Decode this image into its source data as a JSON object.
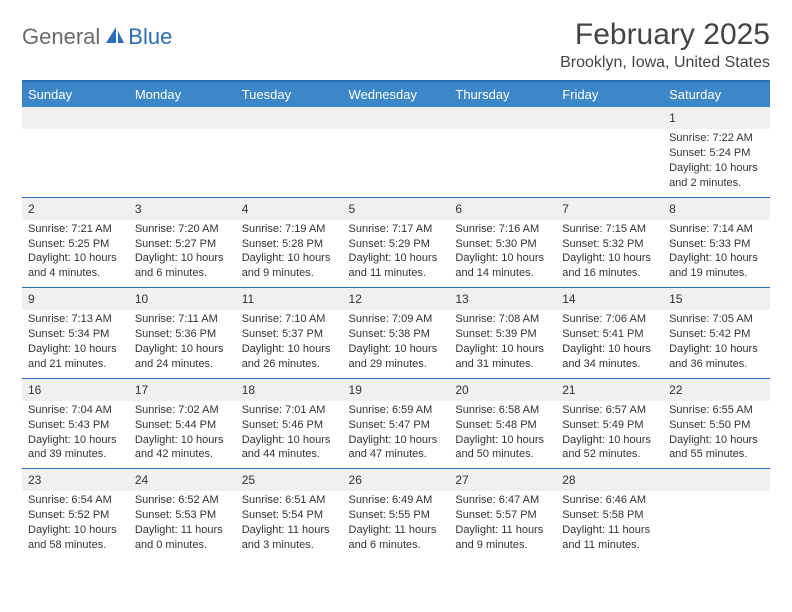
{
  "brand": {
    "part1": "General",
    "part2": "Blue"
  },
  "title": "February 2025",
  "location": "Brooklyn, Iowa, United States",
  "colors": {
    "header_bg": "#3b87c8",
    "border": "#2a6db8",
    "daynum_bg": "#f0f0f0",
    "text": "#333333",
    "logo_gray": "#6b6b6b",
    "logo_blue": "#2a6db8",
    "bg": "#ffffff"
  },
  "weekdays": [
    "Sunday",
    "Monday",
    "Tuesday",
    "Wednesday",
    "Thursday",
    "Friday",
    "Saturday"
  ],
  "weeks": [
    [
      null,
      null,
      null,
      null,
      null,
      null,
      {
        "n": "1",
        "sr": "7:22 AM",
        "ss": "5:24 PM",
        "dl": "10 hours and 2 minutes."
      }
    ],
    [
      {
        "n": "2",
        "sr": "7:21 AM",
        "ss": "5:25 PM",
        "dl": "10 hours and 4 minutes."
      },
      {
        "n": "3",
        "sr": "7:20 AM",
        "ss": "5:27 PM",
        "dl": "10 hours and 6 minutes."
      },
      {
        "n": "4",
        "sr": "7:19 AM",
        "ss": "5:28 PM",
        "dl": "10 hours and 9 minutes."
      },
      {
        "n": "5",
        "sr": "7:17 AM",
        "ss": "5:29 PM",
        "dl": "10 hours and 11 minutes."
      },
      {
        "n": "6",
        "sr": "7:16 AM",
        "ss": "5:30 PM",
        "dl": "10 hours and 14 minutes."
      },
      {
        "n": "7",
        "sr": "7:15 AM",
        "ss": "5:32 PM",
        "dl": "10 hours and 16 minutes."
      },
      {
        "n": "8",
        "sr": "7:14 AM",
        "ss": "5:33 PM",
        "dl": "10 hours and 19 minutes."
      }
    ],
    [
      {
        "n": "9",
        "sr": "7:13 AM",
        "ss": "5:34 PM",
        "dl": "10 hours and 21 minutes."
      },
      {
        "n": "10",
        "sr": "7:11 AM",
        "ss": "5:36 PM",
        "dl": "10 hours and 24 minutes."
      },
      {
        "n": "11",
        "sr": "7:10 AM",
        "ss": "5:37 PM",
        "dl": "10 hours and 26 minutes."
      },
      {
        "n": "12",
        "sr": "7:09 AM",
        "ss": "5:38 PM",
        "dl": "10 hours and 29 minutes."
      },
      {
        "n": "13",
        "sr": "7:08 AM",
        "ss": "5:39 PM",
        "dl": "10 hours and 31 minutes."
      },
      {
        "n": "14",
        "sr": "7:06 AM",
        "ss": "5:41 PM",
        "dl": "10 hours and 34 minutes."
      },
      {
        "n": "15",
        "sr": "7:05 AM",
        "ss": "5:42 PM",
        "dl": "10 hours and 36 minutes."
      }
    ],
    [
      {
        "n": "16",
        "sr": "7:04 AM",
        "ss": "5:43 PM",
        "dl": "10 hours and 39 minutes."
      },
      {
        "n": "17",
        "sr": "7:02 AM",
        "ss": "5:44 PM",
        "dl": "10 hours and 42 minutes."
      },
      {
        "n": "18",
        "sr": "7:01 AM",
        "ss": "5:46 PM",
        "dl": "10 hours and 44 minutes."
      },
      {
        "n": "19",
        "sr": "6:59 AM",
        "ss": "5:47 PM",
        "dl": "10 hours and 47 minutes."
      },
      {
        "n": "20",
        "sr": "6:58 AM",
        "ss": "5:48 PM",
        "dl": "10 hours and 50 minutes."
      },
      {
        "n": "21",
        "sr": "6:57 AM",
        "ss": "5:49 PM",
        "dl": "10 hours and 52 minutes."
      },
      {
        "n": "22",
        "sr": "6:55 AM",
        "ss": "5:50 PM",
        "dl": "10 hours and 55 minutes."
      }
    ],
    [
      {
        "n": "23",
        "sr": "6:54 AM",
        "ss": "5:52 PM",
        "dl": "10 hours and 58 minutes."
      },
      {
        "n": "24",
        "sr": "6:52 AM",
        "ss": "5:53 PM",
        "dl": "11 hours and 0 minutes."
      },
      {
        "n": "25",
        "sr": "6:51 AM",
        "ss": "5:54 PM",
        "dl": "11 hours and 3 minutes."
      },
      {
        "n": "26",
        "sr": "6:49 AM",
        "ss": "5:55 PM",
        "dl": "11 hours and 6 minutes."
      },
      {
        "n": "27",
        "sr": "6:47 AM",
        "ss": "5:57 PM",
        "dl": "11 hours and 9 minutes."
      },
      {
        "n": "28",
        "sr": "6:46 AM",
        "ss": "5:58 PM",
        "dl": "11 hours and 11 minutes."
      },
      null
    ]
  ],
  "labels": {
    "sunrise": "Sunrise:",
    "sunset": "Sunset:",
    "daylight": "Daylight:"
  }
}
